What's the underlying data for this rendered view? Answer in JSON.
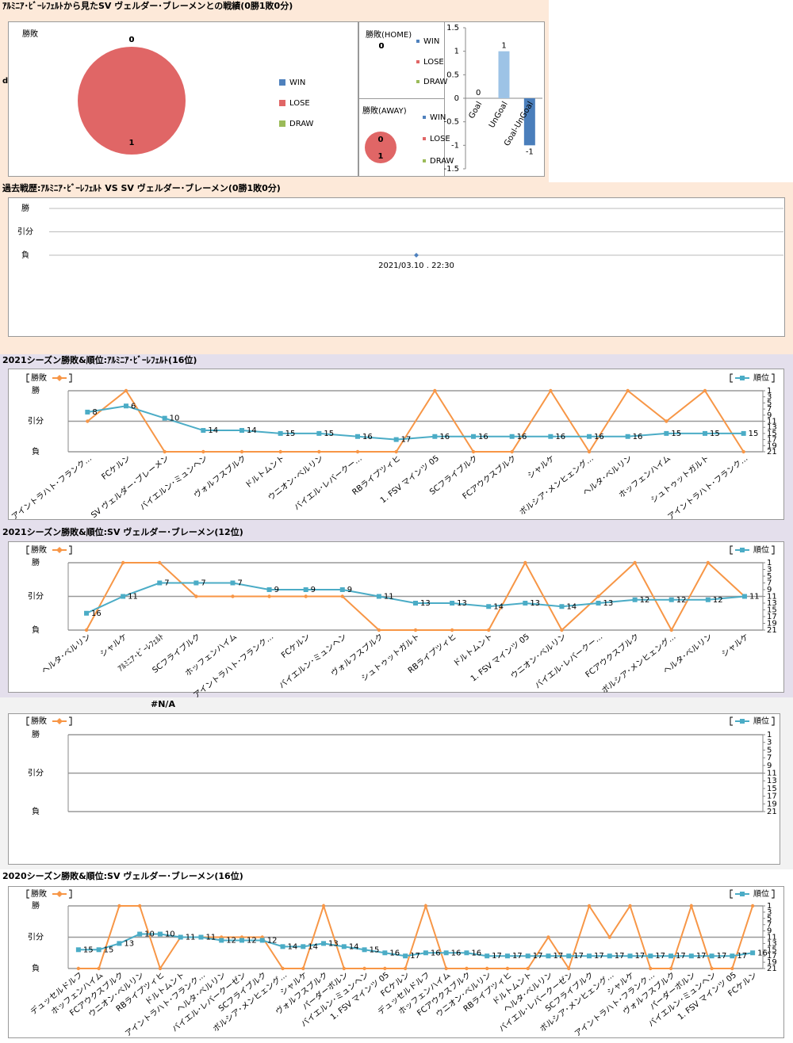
{
  "note": "d",
  "chart_data": [
    {
      "type": "pie",
      "title": "ｱﾙﾐﾆｱ･ﾋﾞｰﾚﾌｪﾙﾄから見たSV ヴェルダー･ブレーメンとの戦績(0勝1敗0分)",
      "label": "勝敗",
      "categories": [
        "WIN",
        "LOSE",
        "DRAW"
      ],
      "values": [
        0,
        1,
        0
      ],
      "colors": [
        "#4f81bd",
        "#e06666",
        "#9bbb59"
      ]
    },
    {
      "type": "pie",
      "label": "勝敗(HOME)",
      "categories": [
        "WIN",
        "LOSE",
        "DRAW"
      ],
      "values": [
        0,
        0,
        0
      ],
      "colors": [
        "#4f81bd",
        "#e06666",
        "#9bbb59"
      ]
    },
    {
      "type": "pie",
      "label": "勝敗(AWAY)",
      "categories": [
        "WIN",
        "LOSE",
        "DRAW"
      ],
      "values": [
        0,
        1,
        0
      ],
      "colors": [
        "#4f81bd",
        "#e06666",
        "#9bbb59"
      ]
    },
    {
      "type": "bar",
      "categories": [
        "Goal",
        "UnGoal",
        "Goal-UnGoal"
      ],
      "values": [
        0,
        1,
        -1
      ],
      "colors": [
        "#8db4e2",
        "#9dc3e6",
        "#4a7ebb"
      ],
      "ylim": [
        -1.5,
        1.5
      ],
      "yticks": [
        -1.5,
        -1,
        -0.5,
        0,
        0.5,
        1,
        1.5
      ]
    },
    {
      "type": "timeline",
      "title": "過去戦歴:ｱﾙﾐﾆｱ･ﾋﾞｰﾚﾌｪﾙﾄ VS SV ヴェルダー･ブレーメン(0勝1敗0分)",
      "categories": [
        "2021/03.10 . 22:30"
      ],
      "values": [
        -1
      ],
      "color": "#4f81bd",
      "ylim": [
        -1,
        1
      ],
      "yticks": [
        {
          "value": 1,
          "label": "勝"
        },
        {
          "value": 0,
          "label": "引分"
        },
        {
          "value": -1,
          "label": "負"
        }
      ]
    },
    {
      "type": "combo",
      "title": "2021シーズン勝敗&順位:ｱﾙﾐﾆｱ･ﾋﾞｰﾚﾌｪﾙﾄ(16位)",
      "categories": [
        "アイントラハト･フランク…",
        "FCケルン",
        "SV ヴェルダー･ブレーメン",
        "バイエルン･ミュンヘン",
        "ヴォルフスブルク",
        "ドルトムント",
        "ウニオン･ベルリン",
        "バイエル･レバークー…",
        "RBライプツィヒ",
        "1. FSV マインツ 05",
        "SCフライブルク",
        "FCアウクスブルク",
        "シャルケ",
        "ボルシア･メンヒェング…",
        "ヘルタ･ベルリン",
        "ホッフェンハイム",
        "シュトゥットガルト",
        "アイントラハト･フランク…"
      ],
      "series": [
        {
          "name": "勝敗",
          "color": "#f79646",
          "values": [
            0,
            1,
            -1,
            -1,
            -1,
            -1,
            -1,
            -1,
            -1,
            1,
            -1,
            -1,
            1,
            -1,
            1,
            0,
            1,
            -1
          ]
        },
        {
          "name": "順位",
          "color": "#4bacc6",
          "axis": "y2",
          "values": [
            8,
            6,
            10,
            14,
            14,
            15,
            15,
            16,
            17,
            16,
            16,
            16,
            16,
            16,
            16,
            15,
            15,
            15
          ]
        }
      ],
      "ylim": [
        -1,
        1
      ],
      "yticks": [
        {
          "value": 1,
          "label": "勝"
        },
        {
          "value": 0,
          "label": "引分"
        },
        {
          "value": -1,
          "label": "負"
        }
      ],
      "y2lim": [
        21,
        1
      ],
      "y2ticks": [
        1,
        3,
        5,
        7,
        9,
        11,
        13,
        15,
        17,
        19,
        21
      ],
      "grid": true
    },
    {
      "type": "combo",
      "title": "2021シーズン勝敗&順位:SV ヴェルダー･ブレーメン(12位)",
      "categories": [
        "ヘルタ･ベルリン",
        "シャルケ",
        "ｱﾙﾐﾆｱ･ﾋﾞｰﾚﾌｪﾙﾄ",
        "SCフライブルク",
        "ホッフェンハイム",
        "アイントラハト･フランク…",
        "FCケルン",
        "バイエルン･ミュンヘン",
        "ヴォルフスブルク",
        "シュトゥットガルト",
        "RBライプツィヒ",
        "ドルトムント",
        "1. FSV マインツ 05",
        "ウニオン･ベルリン",
        "バイエル･レバークー…",
        "FCアウクスブルク",
        "ボルシア･メンヒェング…",
        "ヘルタ･ベルリン",
        "シャルケ"
      ],
      "series": [
        {
          "name": "勝敗",
          "color": "#f79646",
          "values": [
            -1,
            1,
            1,
            0,
            0,
            0,
            0,
            0,
            -1,
            -1,
            -1,
            -1,
            1,
            -1,
            0,
            1,
            -1,
            1,
            0
          ]
        },
        {
          "name": "順位",
          "color": "#4bacc6",
          "axis": "y2",
          "values": [
            16,
            11,
            7,
            7,
            7,
            9,
            9,
            9,
            11,
            13,
            13,
            14,
            13,
            14,
            13,
            12,
            12,
            12,
            11
          ]
        }
      ],
      "ylim": [
        -1,
        1
      ],
      "yticks": [
        {
          "value": 1,
          "label": "勝"
        },
        {
          "value": 0,
          "label": "引分"
        },
        {
          "value": -1,
          "label": "負"
        }
      ],
      "y2lim": [
        21,
        1
      ],
      "y2ticks": [
        1,
        3,
        5,
        7,
        9,
        11,
        13,
        15,
        17,
        19,
        21
      ],
      "grid": true
    },
    {
      "type": "combo",
      "title": "#N/A",
      "categories": [],
      "series": [
        {
          "name": "勝敗",
          "color": "#f79646",
          "values": []
        },
        {
          "name": "順位",
          "color": "#4bacc6",
          "axis": "y2",
          "values": []
        }
      ],
      "ylim": [
        -1,
        1
      ],
      "yticks": [
        {
          "value": 1,
          "label": "勝"
        },
        {
          "value": 0,
          "label": "引分"
        },
        {
          "value": -1,
          "label": "負"
        }
      ],
      "y2lim": [
        21,
        1
      ],
      "y2ticks": [
        1,
        3,
        5,
        7,
        9,
        11,
        13,
        15,
        17,
        19,
        21
      ],
      "grid": true
    },
    {
      "type": "combo",
      "title": "2020シーズン勝敗&順位:SV ヴェルダー･ブレーメン(16位)",
      "categories": [
        "デュッセルドルフ",
        "ホッフェンハイム",
        "FCアウクスブルク",
        "ウニオン･ベルリン",
        "RBライプツィヒ",
        "ドルトムント",
        "アイントラハト･フランク…",
        "ヘルタ･ベルリン",
        "バイエル･レバークーゼン",
        "SCフライブルク",
        "ボルシア･メンヒェング…",
        "シャルケ",
        "ヴォルフスブルク",
        "パーダーボルン",
        "バイエルン･ミュンヘン",
        "1. FSV マインツ 05",
        "FCケルン",
        "デュッセルドルフ",
        "ホッフェンハイム",
        "FCアウクスブルク",
        "ウニオン･ベルリン",
        "RBライプツィヒ",
        "ドルトムント",
        "ヘルタ･ベルリン",
        "バイエル･レバークーゼン",
        "SCフライブルク",
        "ボルシア･メンヒェング…",
        "シャルケ",
        "アイントラハト･フランク…",
        "ヴォルフスブルク",
        "パーダーボルン",
        "バイエルン･ミュンヘン",
        "1. FSV マインツ 05",
        "FCケルン"
      ],
      "series": [
        {
          "name": "勝敗",
          "color": "#f79646",
          "values": [
            -1,
            -1,
            1,
            1,
            -1,
            0,
            0,
            0,
            0,
            0,
            -1,
            -1,
            1,
            -1,
            -1,
            -1,
            -1,
            1,
            -1,
            -1,
            -1,
            -1,
            -1,
            0,
            -1,
            1,
            0,
            1,
            -1,
            -1,
            1,
            -1,
            -1,
            1
          ]
        },
        {
          "name": "順位",
          "color": "#4bacc6",
          "axis": "y2",
          "values": [
            15,
            15,
            13,
            10,
            10,
            11,
            11,
            12,
            12,
            12,
            14,
            14,
            13,
            14,
            15,
            16,
            17,
            16,
            16,
            16,
            17,
            17,
            17,
            17,
            17,
            17,
            17,
            17,
            17,
            17,
            17,
            17,
            17,
            16
          ]
        }
      ],
      "ylim": [
        -1,
        1
      ],
      "yticks": [
        {
          "value": 1,
          "label": "勝"
        },
        {
          "value": 0,
          "label": "引分"
        },
        {
          "value": -1,
          "label": "負"
        }
      ],
      "y2lim": [
        21,
        1
      ],
      "y2ticks": [
        1,
        3,
        5,
        7,
        9,
        11,
        13,
        15,
        17,
        19,
        21
      ],
      "grid": true
    }
  ]
}
